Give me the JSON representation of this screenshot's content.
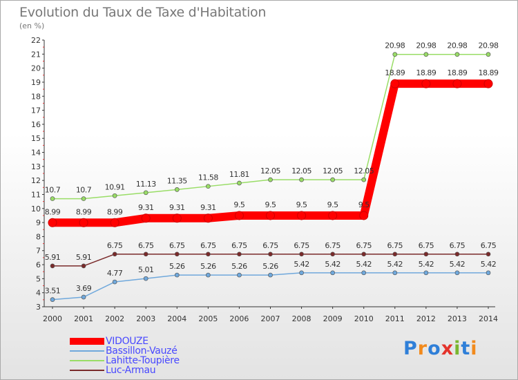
{
  "title": "Evolution du Taux de Taxe d'Habitation",
  "unit_label": "(en %)",
  "logo": {
    "text": "Proxiti",
    "letters": [
      "P",
      "r",
      "o",
      "x",
      "i",
      "t",
      "i"
    ],
    "colors": [
      "#2f7fd8",
      "#f28a1c",
      "#2f7fd8",
      "#e4332b",
      "#7ab630",
      "#2f7fd8",
      "#f28a1c"
    ]
  },
  "chart_data": {
    "type": "line",
    "title": "Evolution du Taux de Taxe d'Habitation",
    "ylabel": "(en %)",
    "xlabel": "",
    "x": [
      "2000",
      "2001",
      "2002",
      "2003",
      "2004",
      "2005",
      "2006",
      "2007",
      "2008",
      "2009",
      "2010",
      "2011",
      "2012",
      "2013",
      "2014"
    ],
    "ylim": [
      3,
      22
    ],
    "yticks": [
      "3",
      "4",
      "5",
      "6",
      "7",
      "8",
      "9",
      "10",
      "11",
      "12",
      "13",
      "14",
      "15",
      "16",
      "17",
      "18",
      "19",
      "20",
      "21",
      "22"
    ],
    "grid": false,
    "legend_position": "bottom-left",
    "series": [
      {
        "name": "VIDOUZE",
        "color": "#ff0000",
        "values": [
          8.99,
          8.99,
          8.99,
          9.31,
          9.31,
          9.31,
          9.5,
          9.5,
          9.5,
          9.5,
          9.5,
          18.89,
          18.89,
          18.89,
          18.89
        ],
        "labels": [
          "8.99",
          "8.99",
          "8.99",
          "9.31",
          "9.31",
          "9.31",
          "9.5",
          "9.5",
          "9.5",
          "9.5",
          "9.5",
          "18.89",
          "18.89",
          "18.89",
          "18.89"
        ]
      },
      {
        "name": "Bassillon-Vauzé",
        "color": "#6fa8dc",
        "values": [
          3.51,
          3.69,
          4.77,
          5.01,
          5.26,
          5.26,
          5.26,
          5.26,
          5.42,
          5.42,
          5.42,
          5.42,
          5.42,
          5.42,
          5.42
        ],
        "labels": [
          "3.51",
          "3.69",
          "4.77",
          "5.01",
          "5.26",
          "5.26",
          "5.26",
          "5.26",
          "5.42",
          "5.42",
          "5.42",
          "5.42",
          "5.42",
          "5.42",
          "5.42"
        ]
      },
      {
        "name": "Lahitte-Toupière",
        "color": "#99dd66",
        "values": [
          10.7,
          10.7,
          10.91,
          11.13,
          11.35,
          11.58,
          11.81,
          12.05,
          12.05,
          12.05,
          12.05,
          20.98,
          20.98,
          20.98,
          20.98
        ],
        "labels": [
          "10.7",
          "10.7",
          "10.91",
          "11.13",
          "11.35",
          "11.58",
          "11.81",
          "12.05",
          "12.05",
          "12.05",
          "12.05",
          "20.98",
          "20.98",
          "20.98",
          "20.98"
        ]
      },
      {
        "name": "Luc-Armau",
        "color": "#7a2a2a",
        "values": [
          5.91,
          5.91,
          6.75,
          6.75,
          6.75,
          6.75,
          6.75,
          6.75,
          6.75,
          6.75,
          6.75,
          6.75,
          6.75,
          6.75,
          6.75
        ],
        "labels": [
          "5.91",
          "5.91",
          "6.75",
          "6.75",
          "6.75",
          "6.75",
          "6.75",
          "6.75",
          "6.75",
          "6.75",
          "6.75",
          "6.75",
          "6.75",
          "6.75",
          "6.75"
        ]
      }
    ]
  }
}
